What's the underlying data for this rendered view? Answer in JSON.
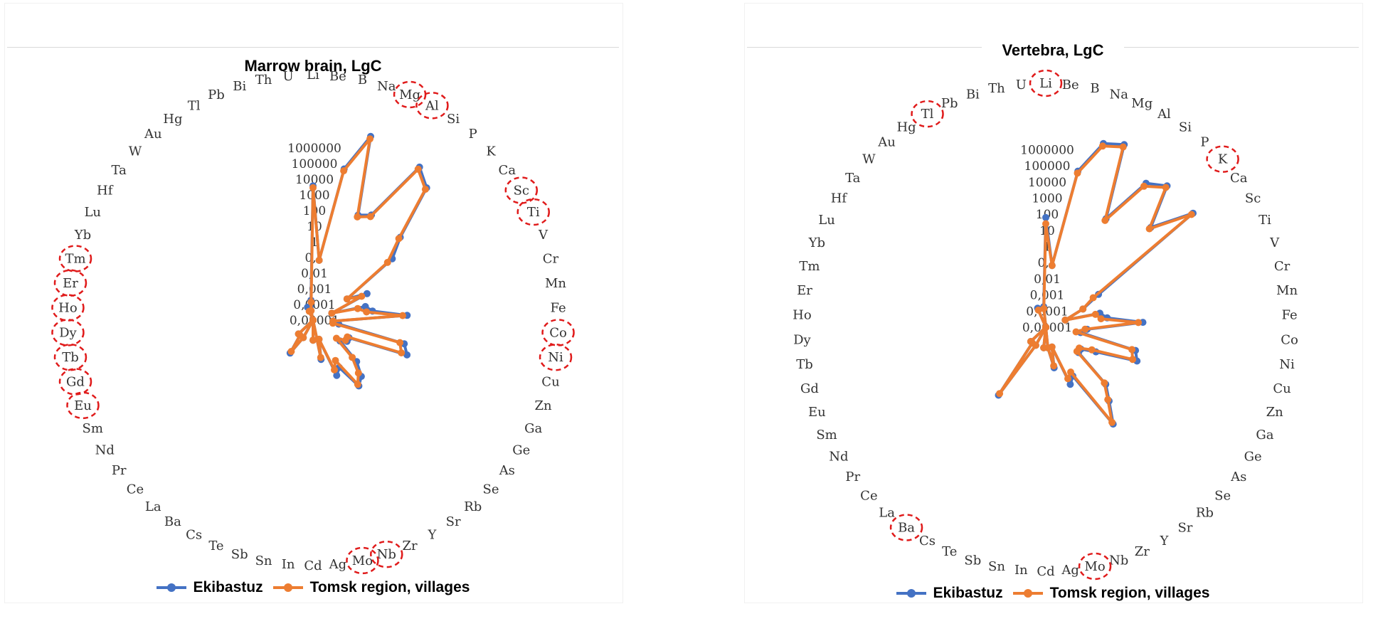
{
  "colors": {
    "ekibastuz": "#4472c4",
    "tomsk": "#ed7d31",
    "highlight": "#e01b1b",
    "grid_text": "#333333"
  },
  "legend": {
    "series1": "Ekibastuz",
    "series2": "Tomsk region, villages"
  },
  "chart_data": [
    {
      "type": "radar",
      "title": "Marrow brain,  LgC",
      "scale": "log10",
      "rlim": [
        1e-05,
        1000000
      ],
      "ticks": [
        "0,00001",
        "0,0001",
        "0,001",
        "0,01",
        "0,1",
        "1",
        "10",
        "100",
        "1000",
        "10000",
        "100000",
        "1000000"
      ],
      "categories": [
        "Li",
        "Be",
        "B",
        "Na",
        "Mg",
        "Al",
        "Si",
        "P",
        "K",
        "Ca",
        "Sc",
        "Ti",
        "V",
        "Cr",
        "Mn",
        "Fe",
        "Co",
        "Ni",
        "Cu",
        "Zn",
        "Ga",
        "Ge",
        "As",
        "Se",
        "Rb",
        "Sr",
        "Y",
        "Zr",
        "Nb",
        "Mo",
        "Ag",
        "Cd",
        "In",
        "Sn",
        "Sb",
        "Te",
        "Cs",
        "Ba",
        "La",
        "Ce",
        "Pr",
        "Nd",
        "Sm",
        "Eu",
        "Gd",
        "Tb",
        "Dy",
        "Ho",
        "Er",
        "Tm",
        "Yb",
        "Lu",
        "Hf",
        "Ta",
        "W",
        "Au",
        "Hg",
        "Tl",
        "Pb",
        "Bi",
        "Th",
        "U"
      ],
      "highlighted": [
        "Mg",
        "Al",
        "Sc",
        "Ti",
        "Co",
        "Ni",
        "Mo",
        "Nb",
        "Tm",
        "Er",
        "Ho",
        "Dy",
        "Tb",
        "Gd",
        "Eu"
      ],
      "legend_position": "bottom",
      "series": [
        {
          "name": "Ekibastuz",
          "values": [
            50,
            0.01,
            500,
            40000,
            5,
            10,
            20000,
            5000,
            10,
            1,
            0.001,
            0.01,
            0.0001,
            0.005,
            0.01,
            0.5,
            0.0001,
            0.0002,
            0.5,
            1,
            0.001,
            0.001,
            0.0005,
            0.01,
            0.05,
            0.1,
            0.005,
            0.01,
            0.0001,
            0.001,
            1e-05,
            0.0001,
            1e-05,
            1e-05,
            1e-05,
            1e-05,
            0.0001,
            0.001,
            0.0001,
            0.0001,
            1e-05,
            1e-05,
            1e-05,
            1e-05,
            1e-05,
            1e-05,
            1e-05,
            1e-05,
            1e-05,
            1e-05,
            1e-05,
            1e-05,
            1e-05,
            1e-05,
            1e-05,
            1e-05,
            1e-05,
            1e-05,
            5e-05,
            1e-05,
            5e-05,
            0.0001
          ]
        },
        {
          "name": "Tomsk region, villages",
          "values": [
            40,
            0.01,
            400,
            30000,
            4,
            8,
            15000,
            4000,
            8,
            0.5,
            0.001,
            0.005,
            0.0001,
            0.002,
            0.005,
            0.3,
            0.0001,
            0.0001,
            0.3,
            0.5,
            0.0008,
            0.0008,
            0.0003,
            0.005,
            0.03,
            0.08,
            0.002,
            0.005,
            0.0001,
            0.0008,
            1e-05,
            0.0001,
            1e-05,
            1e-05,
            1e-05,
            1e-05,
            0.0001,
            0.0008,
            0.0001,
            0.0001,
            1e-05,
            1e-05,
            1e-05,
            1e-05,
            1e-05,
            1e-05,
            1e-05,
            1e-05,
            1e-05,
            1e-05,
            1e-05,
            1e-05,
            1e-05,
            1e-05,
            1e-05,
            1e-05,
            1e-05,
            1e-05,
            3e-05,
            1e-05,
            3e-05,
            8e-05
          ]
        }
      ]
    },
    {
      "type": "radar",
      "title": "Vertebra, LgC",
      "scale": "log10",
      "rlim": [
        1e-05,
        1000000
      ],
      "ticks": [
        "0,00001",
        "0,0001",
        "0,001",
        "0,01",
        "0,1",
        "1",
        "10",
        "100",
        "1000",
        "10000",
        "100000",
        "1000000"
      ],
      "categories": [
        "Li",
        "Be",
        "B",
        "Na",
        "Mg",
        "Al",
        "Si",
        "P",
        "K",
        "Ca",
        "Sc",
        "Ti",
        "V",
        "Cr",
        "Mn",
        "Fe",
        "Co",
        "Ni",
        "Cu",
        "Zn",
        "Ga",
        "Ge",
        "As",
        "Se",
        "Rb",
        "Sr",
        "Y",
        "Zr",
        "Nb",
        "Mo",
        "Ag",
        "Cd",
        "In",
        "Sn",
        "Sb",
        "Te",
        "Cs",
        "Ba",
        "La",
        "Ce",
        "Pr",
        "Nd",
        "Sm",
        "Eu",
        "Gd",
        "Tb",
        "Dy",
        "Ho",
        "Er",
        "Tm",
        "Yb",
        "Lu",
        "Hf",
        "Ta",
        "W",
        "Au",
        "Hg",
        "Tl",
        "Pb",
        "Bi",
        "Th",
        "U"
      ],
      "highlighted": [
        "Li",
        "Tl",
        "K",
        "Ba",
        "Mo"
      ],
      "legend_position": "bottom",
      "series": [
        {
          "name": "Ekibastuz",
          "values": [
            2,
            0.01,
            500,
            20000,
            40000,
            10,
            3000,
            10000,
            100,
            10000,
            0.01,
            0.001,
            0.0001,
            0.005,
            0.01,
            0.5,
            0.001,
            0.0005,
            0.3,
            0.5,
            0.005,
            0.001,
            0.001,
            0.1,
            0.5,
            5,
            0.005,
            0.01,
            0.0001,
            0.001,
            0.0001,
            1e-05,
            0.0001,
            1e-05,
            1e-05,
            1e-05,
            0.0001,
            0.1,
            0.0001,
            0.0001,
            1e-05,
            1e-05,
            1e-05,
            1e-05,
            1e-05,
            1e-05,
            1e-05,
            1e-05,
            1e-05,
            1e-05,
            1e-05,
            1e-05,
            1e-05,
            1e-05,
            1e-05,
            1e-05,
            1e-05,
            1e-05,
            0.0001,
            1e-05,
            1e-05,
            0.0001
          ]
        },
        {
          "name": "Tomsk region, villages",
          "values": [
            1,
            0.01,
            400,
            15000,
            30000,
            8,
            2000,
            8000,
            80,
            8000,
            0.005,
            0.001,
            0.0001,
            0.003,
            0.005,
            0.3,
            0.0008,
            0.0003,
            0.2,
            0.3,
            0.003,
            0.0008,
            0.0008,
            0.08,
            0.4,
            4,
            0.003,
            0.005,
            0.0001,
            0.0008,
            0.0001,
            1e-05,
            0.0001,
            1e-05,
            1e-05,
            1e-05,
            0.0001,
            0.08,
            0.0001,
            0.0001,
            1e-05,
            1e-05,
            1e-05,
            1e-05,
            1e-05,
            1e-05,
            1e-05,
            1e-05,
            1e-05,
            1e-05,
            1e-05,
            1e-05,
            1e-05,
            1e-05,
            1e-05,
            1e-05,
            1e-05,
            1e-05,
            8e-05,
            1e-05,
            1e-05,
            8e-05
          ]
        }
      ]
    }
  ]
}
